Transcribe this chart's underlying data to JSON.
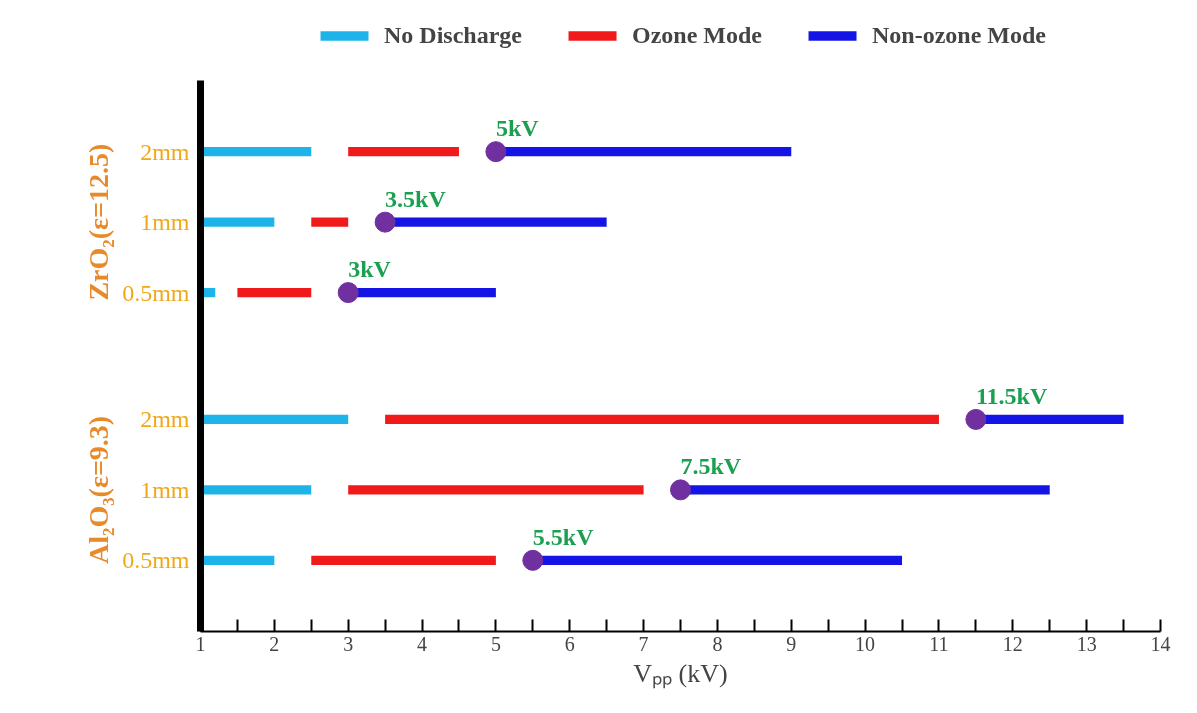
{
  "chart_data": {
    "type": "bar",
    "orientation": "horizontal",
    "categories": [
      "2mm",
      "1mm",
      "0.5mm",
      "2mm",
      "1mm",
      "0.5mm"
    ],
    "annotations": [
      "ZrO₂(ε=12.5)",
      "Al₂O₃(ε=9.3)"
    ],
    "xlabel": "Vₚₚ (kV)",
    "xlim": [
      1,
      14
    ],
    "xticks": [
      1,
      {
        "value": 1.5,
        "label": null
      },
      2,
      {
        "value": 2.5,
        "label": null
      },
      3,
      {
        "value": 3.5,
        "label": null
      },
      4,
      {
        "value": 4.5,
        "label": null
      },
      5,
      {
        "value": 5.5,
        "label": null
      },
      6,
      {
        "value": 6.5,
        "label": null
      },
      7,
      {
        "value": 7.5,
        "label": null
      },
      8,
      {
        "value": 8.5,
        "label": null
      },
      9,
      {
        "value": 9.5,
        "label": null
      },
      10,
      {
        "value": 10.5,
        "label": null
      },
      11,
      {
        "value": 11.5,
        "label": null
      },
      12,
      {
        "value": 12.5,
        "label": null
      },
      13,
      {
        "value": 13.5,
        "label": null
      },
      14
    ],
    "series": [
      {
        "name": "No Discharge",
        "color": "#1eb4ea",
        "base": [
          1,
          1,
          1,
          1,
          1,
          1
        ],
        "values": [
          1.5,
          1,
          0.2,
          2,
          1.5,
          1
        ]
      },
      {
        "name": "Ozone Mode",
        "color": "#f01a1a",
        "base": [
          3,
          2.5,
          1.5,
          3.5,
          3,
          2.5
        ],
        "values": [
          1.5,
          0.5,
          1,
          7.5,
          4,
          2.5
        ]
      },
      {
        "name": "Non-ozone Mode",
        "color": "#1414e6",
        "base": [
          5,
          3.5,
          3,
          11.5,
          7.5,
          5.5
        ],
        "values": [
          4,
          3,
          2,
          2,
          5,
          5
        ]
      },
      {
        "type": "scatter",
        "color": "#7030a0",
        "values": [
          5,
          3.5,
          3,
          11.5,
          7.5,
          5.5
        ],
        "value_labels": [
          "5kV",
          "3.5kV",
          "3kV",
          "11.5kV",
          "7.5kV",
          "5.5kV"
        ]
      }
    ],
    "legend": "top",
    "grid": false,
    "marker": "circle"
  }
}
